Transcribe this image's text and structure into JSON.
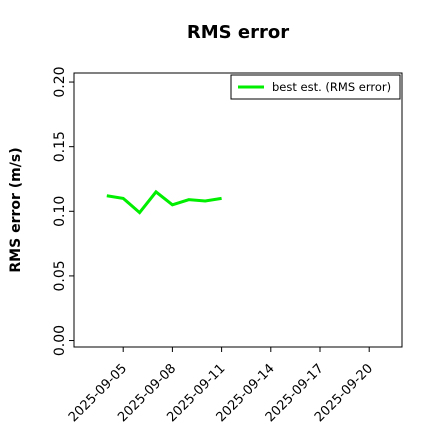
{
  "chart_data": {
    "type": "line",
    "title": "RMS error",
    "ylabel": "RMS error (m/s)",
    "x": [
      "2025-09-04",
      "2025-09-05",
      "2025-09-06",
      "2025-09-07",
      "2025-09-08",
      "2025-09-09",
      "2025-09-10",
      "2025-09-11"
    ],
    "series": [
      {
        "name": "best est. (RMS error)",
        "color": "#00ee00",
        "values": [
          0.112,
          0.11,
          0.099,
          0.115,
          0.105,
          0.109,
          0.108,
          0.11
        ]
      }
    ],
    "xlim": [
      "2025-09-02",
      "2025-09-22"
    ],
    "xticks": [
      "2025-09-05",
      "2025-09-08",
      "2025-09-11",
      "2025-09-14",
      "2025-09-17",
      "2025-09-20"
    ],
    "highlight_xtick": "2025-09-11",
    "highlight_color": "#228b22",
    "ylim": [
      -0.005,
      0.207
    ],
    "yticks": [
      {
        "value": 0,
        "label": "0.00"
      },
      {
        "value": 0.05,
        "label": "0.05"
      },
      {
        "value": 0.1,
        "label": "0.10"
      },
      {
        "value": 0.15,
        "label": "0.15"
      },
      {
        "value": 0.2,
        "label": "0.20"
      }
    ],
    "legend": "upper right",
    "grid": false
  }
}
